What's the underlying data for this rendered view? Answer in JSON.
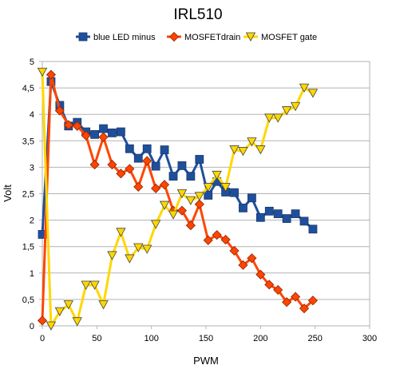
{
  "chart_data": {
    "type": "line",
    "title": "IRL510",
    "xlabel": "PWM",
    "ylabel": "Volt",
    "xlim": [
      0,
      300
    ],
    "ylim": [
      0,
      5
    ],
    "x_ticks": [
      "0",
      "50",
      "100",
      "150",
      "200",
      "250",
      "300"
    ],
    "y_ticks": [
      "0",
      "0,5",
      "1",
      "1,5",
      "2",
      "2,5",
      "3",
      "3,5",
      "4",
      "4,5",
      "5"
    ],
    "grid": "horizontal",
    "legend_position": "top",
    "x": [
      0,
      8,
      16,
      24,
      32,
      40,
      48,
      56,
      64,
      72,
      80,
      88,
      96,
      104,
      112,
      120,
      128,
      136,
      144,
      152,
      160,
      168,
      176,
      184,
      192,
      200,
      208,
      216,
      224,
      232,
      240,
      248
    ],
    "series": [
      {
        "name": "blue LED minus",
        "color": "#1f4f9c",
        "marker": "square",
        "values": [
          1.73,
          4.62,
          4.17,
          3.78,
          3.85,
          3.67,
          3.62,
          3.73,
          3.65,
          3.67,
          3.35,
          3.17,
          3.35,
          3.02,
          3.33,
          2.83,
          3.03,
          2.83,
          3.15,
          2.47,
          2.73,
          2.53,
          2.52,
          2.23,
          2.42,
          2.05,
          2.17,
          2.12,
          2.03,
          2.12,
          1.98,
          1.83
        ]
      },
      {
        "name": "MOSFETdrain",
        "color": "#ff4500",
        "marker": "diamond",
        "values": [
          0.1,
          4.75,
          4.07,
          3.8,
          3.78,
          3.6,
          3.05,
          3.57,
          3.05,
          2.88,
          2.97,
          2.63,
          3.12,
          2.6,
          2.67,
          2.18,
          2.18,
          1.9,
          2.3,
          1.62,
          1.72,
          1.63,
          1.42,
          1.15,
          1.28,
          0.97,
          0.78,
          0.68,
          0.45,
          0.55,
          0.33,
          0.48
        ]
      },
      {
        "name": "MOSFET gate",
        "color": "#ffd700",
        "marker": "triangle-down",
        "values": [
          4.8,
          0.0,
          0.27,
          0.4,
          0.08,
          0.77,
          0.77,
          0.4,
          1.33,
          1.77,
          1.27,
          1.48,
          1.45,
          1.92,
          2.28,
          2.1,
          2.5,
          2.37,
          2.45,
          2.62,
          2.85,
          2.62,
          3.33,
          3.3,
          3.48,
          3.33,
          3.93,
          3.93,
          4.07,
          4.15,
          4.5,
          4.4
        ]
      }
    ]
  }
}
